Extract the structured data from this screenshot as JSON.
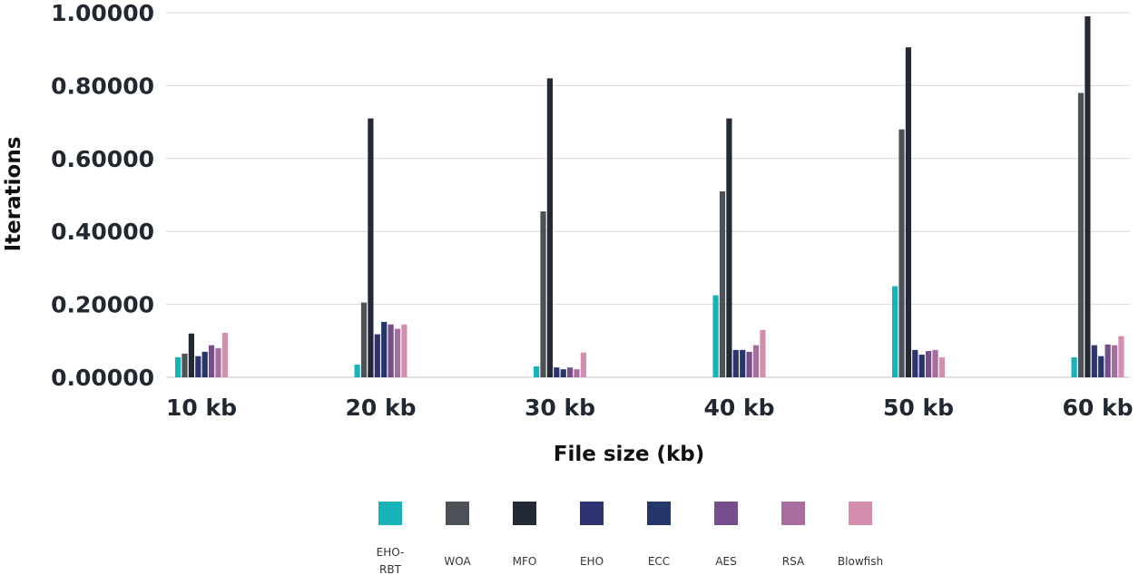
{
  "chart_data": {
    "type": "bar",
    "title": "",
    "xlabel": "File size  (kb)",
    "ylabel": "Iterations",
    "ylim": [
      0,
      1.0
    ],
    "yticks": [
      0.0,
      0.2,
      0.4,
      0.6,
      0.8,
      1.0
    ],
    "ytick_labels": [
      "0.00000",
      "0.20000",
      "0.40000",
      "0.60000",
      "0.80000",
      "1.00000"
    ],
    "categories": [
      "10 kb",
      "20 kb",
      "30 kb",
      "40 kb",
      "50 kb",
      "60 kb"
    ],
    "grid": true,
    "legend_position": "bottom",
    "series": [
      {
        "name": "EHO-RBT",
        "color": "#17B3B8",
        "values": [
          0.055,
          0.035,
          0.03,
          0.225,
          0.25,
          0.055
        ]
      },
      {
        "name": "WOA",
        "color": "#4D5258",
        "values": [
          0.065,
          0.205,
          0.455,
          0.51,
          0.68,
          0.78
        ]
      },
      {
        "name": "MFO",
        "color": "#232A35",
        "values": [
          0.12,
          0.71,
          0.82,
          0.71,
          0.905,
          0.99
        ]
      },
      {
        "name": "EHO",
        "color": "#303372",
        "values": [
          0.058,
          0.118,
          0.027,
          0.075,
          0.075,
          0.088
        ]
      },
      {
        "name": "ECC",
        "color": "#24366A",
        "values": [
          0.07,
          0.152,
          0.022,
          0.075,
          0.062,
          0.058
        ]
      },
      {
        "name": "AES",
        "color": "#764E8C",
        "values": [
          0.088,
          0.145,
          0.027,
          0.07,
          0.072,
          0.09
        ]
      },
      {
        "name": "RSA",
        "color": "#A76D9E",
        "values": [
          0.08,
          0.133,
          0.022,
          0.088,
          0.075,
          0.088
        ]
      },
      {
        "name": "Blowfish",
        "color": "#D48FAE",
        "values": [
          0.122,
          0.145,
          0.068,
          0.13,
          0.055,
          0.113
        ]
      }
    ]
  }
}
